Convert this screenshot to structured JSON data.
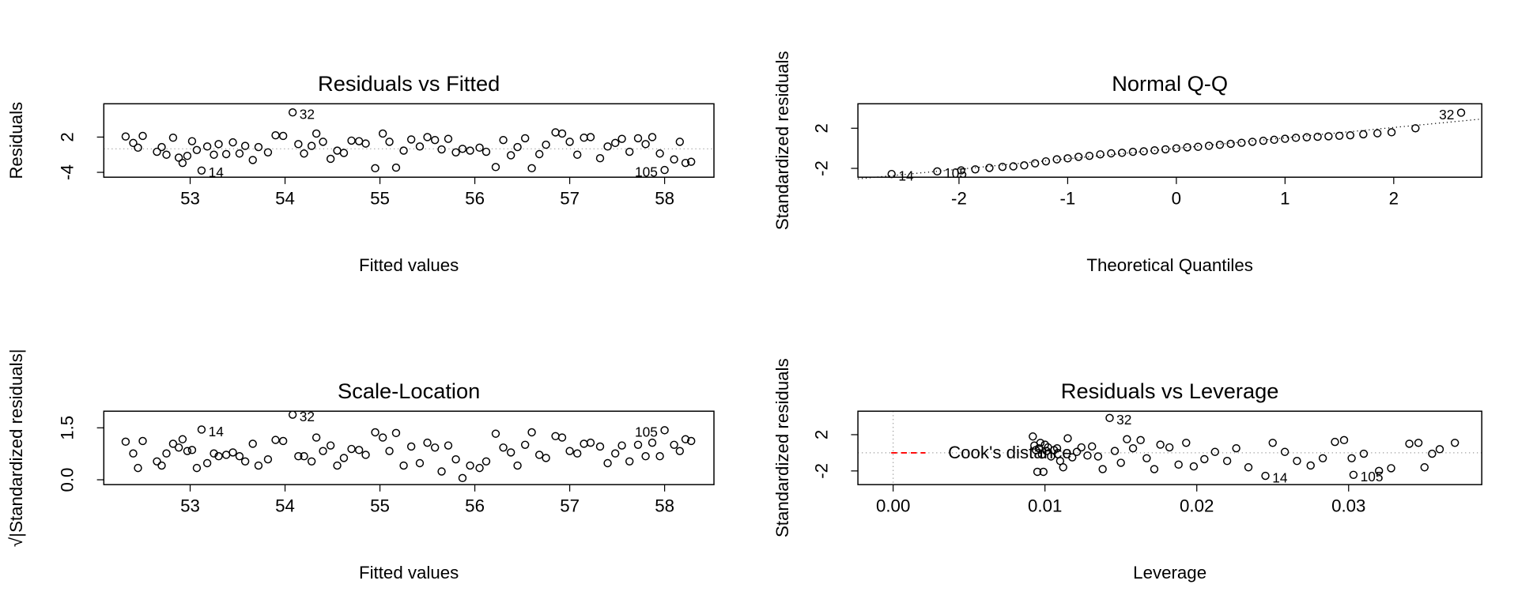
{
  "chart_data": [
    {
      "type": "scatter",
      "title": "Residuals vs Fitted",
      "x_label": "Fitted values",
      "y_label": "Residuals",
      "x": [
        52.32,
        52.4,
        52.45,
        52.5,
        52.65,
        52.7,
        52.75,
        52.82,
        52.88,
        52.92,
        52.97,
        53.02,
        53.07,
        53.12,
        53.18,
        53.25,
        53.3,
        53.38,
        53.45,
        53.52,
        53.58,
        53.66,
        53.72,
        53.82,
        53.9,
        53.98,
        54.08,
        54.14,
        54.2,
        54.28,
        54.33,
        54.4,
        54.48,
        54.55,
        54.62,
        54.7,
        54.78,
        54.85,
        54.95,
        55.03,
        55.1,
        55.17,
        55.25,
        55.33,
        55.42,
        55.5,
        55.58,
        55.65,
        55.72,
        55.8,
        55.87,
        55.95,
        56.05,
        56.12,
        56.22,
        56.3,
        56.38,
        56.45,
        56.53,
        56.6,
        56.68,
        56.75,
        56.85,
        56.92,
        57.0,
        57.08,
        57.15,
        57.22,
        57.32,
        57.4,
        57.48,
        57.55,
        57.63,
        57.72,
        57.8,
        57.87,
        57.95,
        58.0,
        58.1,
        58.16,
        58.22,
        58.28
      ],
      "values": [
        2.1,
        1.0,
        0.2,
        2.2,
        -0.5,
        0.3,
        -1.0,
        1.9,
        -1.5,
        -2.4,
        -1.2,
        1.3,
        -0.2,
        -3.7,
        0.4,
        -1.0,
        0.8,
        -0.9,
        1.1,
        -0.8,
        0.5,
        -1.9,
        0.3,
        -0.6,
        2.3,
        2.2,
        6.2,
        0.8,
        -0.8,
        0.5,
        2.6,
        1.2,
        -1.7,
        -0.3,
        -0.7,
        1.4,
        1.3,
        0.9,
        -3.3,
        2.6,
        1.2,
        -3.2,
        -0.3,
        1.6,
        0.4,
        2.0,
        1.5,
        -0.1,
        1.7,
        -0.6,
        0.0,
        -0.3,
        0.2,
        -0.5,
        -3.1,
        1.5,
        -1.1,
        0.3,
        1.8,
        -3.3,
        -0.9,
        0.7,
        2.8,
        2.6,
        1.2,
        -1.0,
        1.9,
        2.0,
        -1.6,
        0.4,
        1.0,
        1.7,
        -0.5,
        1.8,
        0.8,
        2.0,
        -0.8,
        -3.6,
        -1.8,
        1.2,
        -2.4,
        -2.2
      ],
      "xlim": [
        52.09,
        58.52
      ],
      "ylim": [
        -4.83,
        7.67
      ],
      "xticks": [
        53,
        54,
        55,
        56,
        57,
        58
      ],
      "yticks": [
        -4,
        2
      ],
      "hline": 0,
      "color": "#000000",
      "annotations": [
        {
          "text": "32",
          "x": 54.08,
          "y": 6.2
        },
        {
          "text": "14",
          "x": 53.12,
          "y": -3.7
        },
        {
          "text": "105",
          "x": 58.0,
          "y": -3.6
        }
      ]
    },
    {
      "type": "scatter",
      "title": "Normal Q-Q",
      "x_label": "Theoretical Quantiles",
      "y_label": "Standardized residuals",
      "x": [
        -2.62,
        -2.2,
        -1.98,
        -1.85,
        -1.72,
        -1.6,
        -1.5,
        -1.4,
        -1.3,
        -1.2,
        -1.1,
        -1.0,
        -0.9,
        -0.8,
        -0.7,
        -0.6,
        -0.5,
        -0.4,
        -0.3,
        -0.2,
        -0.1,
        0.0,
        0.1,
        0.2,
        0.3,
        0.4,
        0.5,
        0.6,
        0.7,
        0.8,
        0.9,
        1.0,
        1.1,
        1.2,
        1.3,
        1.4,
        1.5,
        1.6,
        1.72,
        1.85,
        1.98,
        2.2,
        2.62
      ],
      "values": [
        -2.56,
        -2.3,
        -2.2,
        -2.1,
        -1.95,
        -1.85,
        -1.8,
        -1.7,
        -1.5,
        -1.3,
        -1.1,
        -1.0,
        -0.85,
        -0.75,
        -0.6,
        -0.5,
        -0.45,
        -0.35,
        -0.3,
        -0.2,
        -0.1,
        0.0,
        0.1,
        0.15,
        0.25,
        0.35,
        0.45,
        0.55,
        0.65,
        0.75,
        0.85,
        0.95,
        1.05,
        1.1,
        1.15,
        1.2,
        1.25,
        1.3,
        1.4,
        1.5,
        1.6,
        2.0,
        3.55
      ],
      "xlim": [
        -2.93,
        2.81
      ],
      "ylim": [
        -2.88,
        4.44
      ],
      "xticks": [
        -2,
        -1,
        0,
        1,
        2
      ],
      "yticks": [
        -2,
        2
      ],
      "ref_line": {
        "x": [
          -2.93,
          2.81
        ],
        "y": [
          -3.05,
          2.92
        ]
      },
      "color": "#000000",
      "annotations": [
        {
          "text": "32",
          "x": 2.62,
          "y": 3.55
        },
        {
          "text": "14",
          "x": -2.62,
          "y": -2.56
        },
        {
          "text": "105",
          "x": -2.2,
          "y": -2.3
        }
      ]
    },
    {
      "type": "scatter",
      "title": "Scale-Location",
      "x_label": "Fitted values",
      "y_label": "√|Standardized residuals|",
      "x": [
        52.32,
        52.4,
        52.45,
        52.5,
        52.65,
        52.7,
        52.75,
        52.82,
        52.88,
        52.92,
        52.97,
        53.02,
        53.07,
        53.12,
        53.18,
        53.25,
        53.3,
        53.38,
        53.45,
        53.52,
        53.58,
        53.66,
        53.72,
        53.82,
        53.9,
        53.98,
        54.08,
        54.14,
        54.2,
        54.28,
        54.33,
        54.4,
        54.48,
        54.55,
        54.62,
        54.7,
        54.78,
        54.85,
        54.95,
        55.03,
        55.1,
        55.17,
        55.25,
        55.33,
        55.42,
        55.5,
        55.58,
        55.65,
        55.72,
        55.8,
        55.87,
        55.95,
        56.05,
        56.12,
        56.22,
        56.3,
        56.38,
        56.45,
        56.53,
        56.6,
        56.68,
        56.75,
        56.85,
        56.92,
        57.0,
        57.08,
        57.15,
        57.22,
        57.32,
        57.4,
        57.48,
        57.55,
        57.63,
        57.72,
        57.8,
        57.87,
        57.95,
        58.0,
        58.1,
        58.16,
        58.22,
        58.28
      ],
      "values": [
        1.1,
        0.76,
        0.34,
        1.12,
        0.53,
        0.41,
        0.76,
        1.04,
        0.93,
        1.17,
        0.83,
        0.86,
        0.34,
        1.45,
        0.48,
        0.76,
        0.68,
        0.72,
        0.79,
        0.68,
        0.53,
        1.04,
        0.41,
        0.59,
        1.15,
        1.12,
        1.88,
        0.68,
        0.68,
        0.53,
        1.22,
        0.83,
        0.99,
        0.41,
        0.63,
        0.89,
        0.86,
        0.72,
        1.37,
        1.22,
        0.83,
        1.35,
        0.41,
        0.96,
        0.48,
        1.07,
        0.93,
        0.24,
        0.99,
        0.59,
        0.05,
        0.41,
        0.34,
        0.53,
        1.33,
        0.93,
        0.79,
        0.41,
        1.01,
        1.37,
        0.72,
        0.63,
        1.26,
        1.22,
        0.83,
        0.76,
        1.04,
        1.07,
        0.96,
        0.48,
        0.76,
        0.99,
        0.53,
        1.01,
        0.68,
        1.07,
        0.68,
        1.43,
        1.01,
        0.83,
        1.17,
        1.12
      ],
      "xlim": [
        52.09,
        58.52
      ],
      "ylim": [
        -0.14,
        1.98
      ],
      "xticks": [
        53,
        54,
        55,
        56,
        57,
        58
      ],
      "yticks": [
        {
          "value": 0,
          "label": "0.0"
        },
        1.5
      ],
      "color": "#000000",
      "annotations": [
        {
          "text": "32",
          "x": 54.08,
          "y": 1.88
        },
        {
          "text": "14",
          "x": 53.12,
          "y": 1.45
        },
        {
          "text": "105",
          "x": 58.0,
          "y": 1.43
        }
      ]
    },
    {
      "type": "scatter",
      "title": "Residuals vs Leverage",
      "x_label": "Leverage",
      "y_label": "Standardized residuals",
      "x": [
        0.0092,
        0.0093,
        0.0094,
        0.0095,
        0.0096,
        0.0097,
        0.0098,
        0.0099,
        0.01,
        0.0101,
        0.0102,
        0.0104,
        0.0106,
        0.0108,
        0.011,
        0.0112,
        0.0115,
        0.0118,
        0.0121,
        0.0124,
        0.0128,
        0.0131,
        0.0135,
        0.0138,
        0.01426,
        0.0146,
        0.015,
        0.0154,
        0.0158,
        0.0163,
        0.0167,
        0.0172,
        0.0176,
        0.0182,
        0.0188,
        0.0193,
        0.0198,
        0.0205,
        0.0212,
        0.022,
        0.0226,
        0.0234,
        0.02452,
        0.025,
        0.0258,
        0.0266,
        0.0275,
        0.0283,
        0.0291,
        0.0297,
        0.0302,
        0.03032,
        0.031,
        0.032,
        0.0328,
        0.034,
        0.0346,
        0.035,
        0.0355,
        0.036,
        0.037
      ],
      "values": [
        1.8,
        0.8,
        0.3,
        -2.1,
        0.5,
        1.1,
        -0.2,
        -2.1,
        0.9,
        0.2,
        0.6,
        -0.4,
        0.3,
        0.5,
        -0.9,
        -1.6,
        1.6,
        -0.5,
        0.1,
        0.6,
        -0.3,
        0.7,
        -0.4,
        -1.8,
        3.84,
        0.2,
        -1.1,
        1.5,
        0.5,
        1.4,
        -0.6,
        -1.8,
        0.9,
        0.6,
        -1.3,
        1.1,
        -1.5,
        -0.7,
        0.1,
        -0.9,
        0.5,
        -1.6,
        -2.54,
        1.1,
        0.1,
        -0.9,
        -1.4,
        -0.6,
        1.2,
        1.4,
        -0.6,
        -2.43,
        -0.1,
        -2.0,
        -1.7,
        1.0,
        1.1,
        -1.6,
        -0.1,
        0.4,
        1.1
      ],
      "xlim": [
        -0.00232,
        0.03877
      ],
      "ylim": [
        -3.51,
        4.59
      ],
      "xticks": [
        {
          "value": 0,
          "label": "0.00"
        },
        0.01,
        0.02,
        0.03
      ],
      "yticks": [
        -2,
        2
      ],
      "hline": 0,
      "vline": 0,
      "color": "#000000",
      "legend": [
        {
          "name": "Cook's distance",
          "color": "#ff0000"
        }
      ],
      "annotations": [
        {
          "text": "32",
          "x": 0.01426,
          "y": 3.84
        },
        {
          "text": "14",
          "x": 0.02452,
          "y": -2.54
        },
        {
          "text": "105",
          "x": 0.03032,
          "y": -2.43
        }
      ]
    }
  ]
}
